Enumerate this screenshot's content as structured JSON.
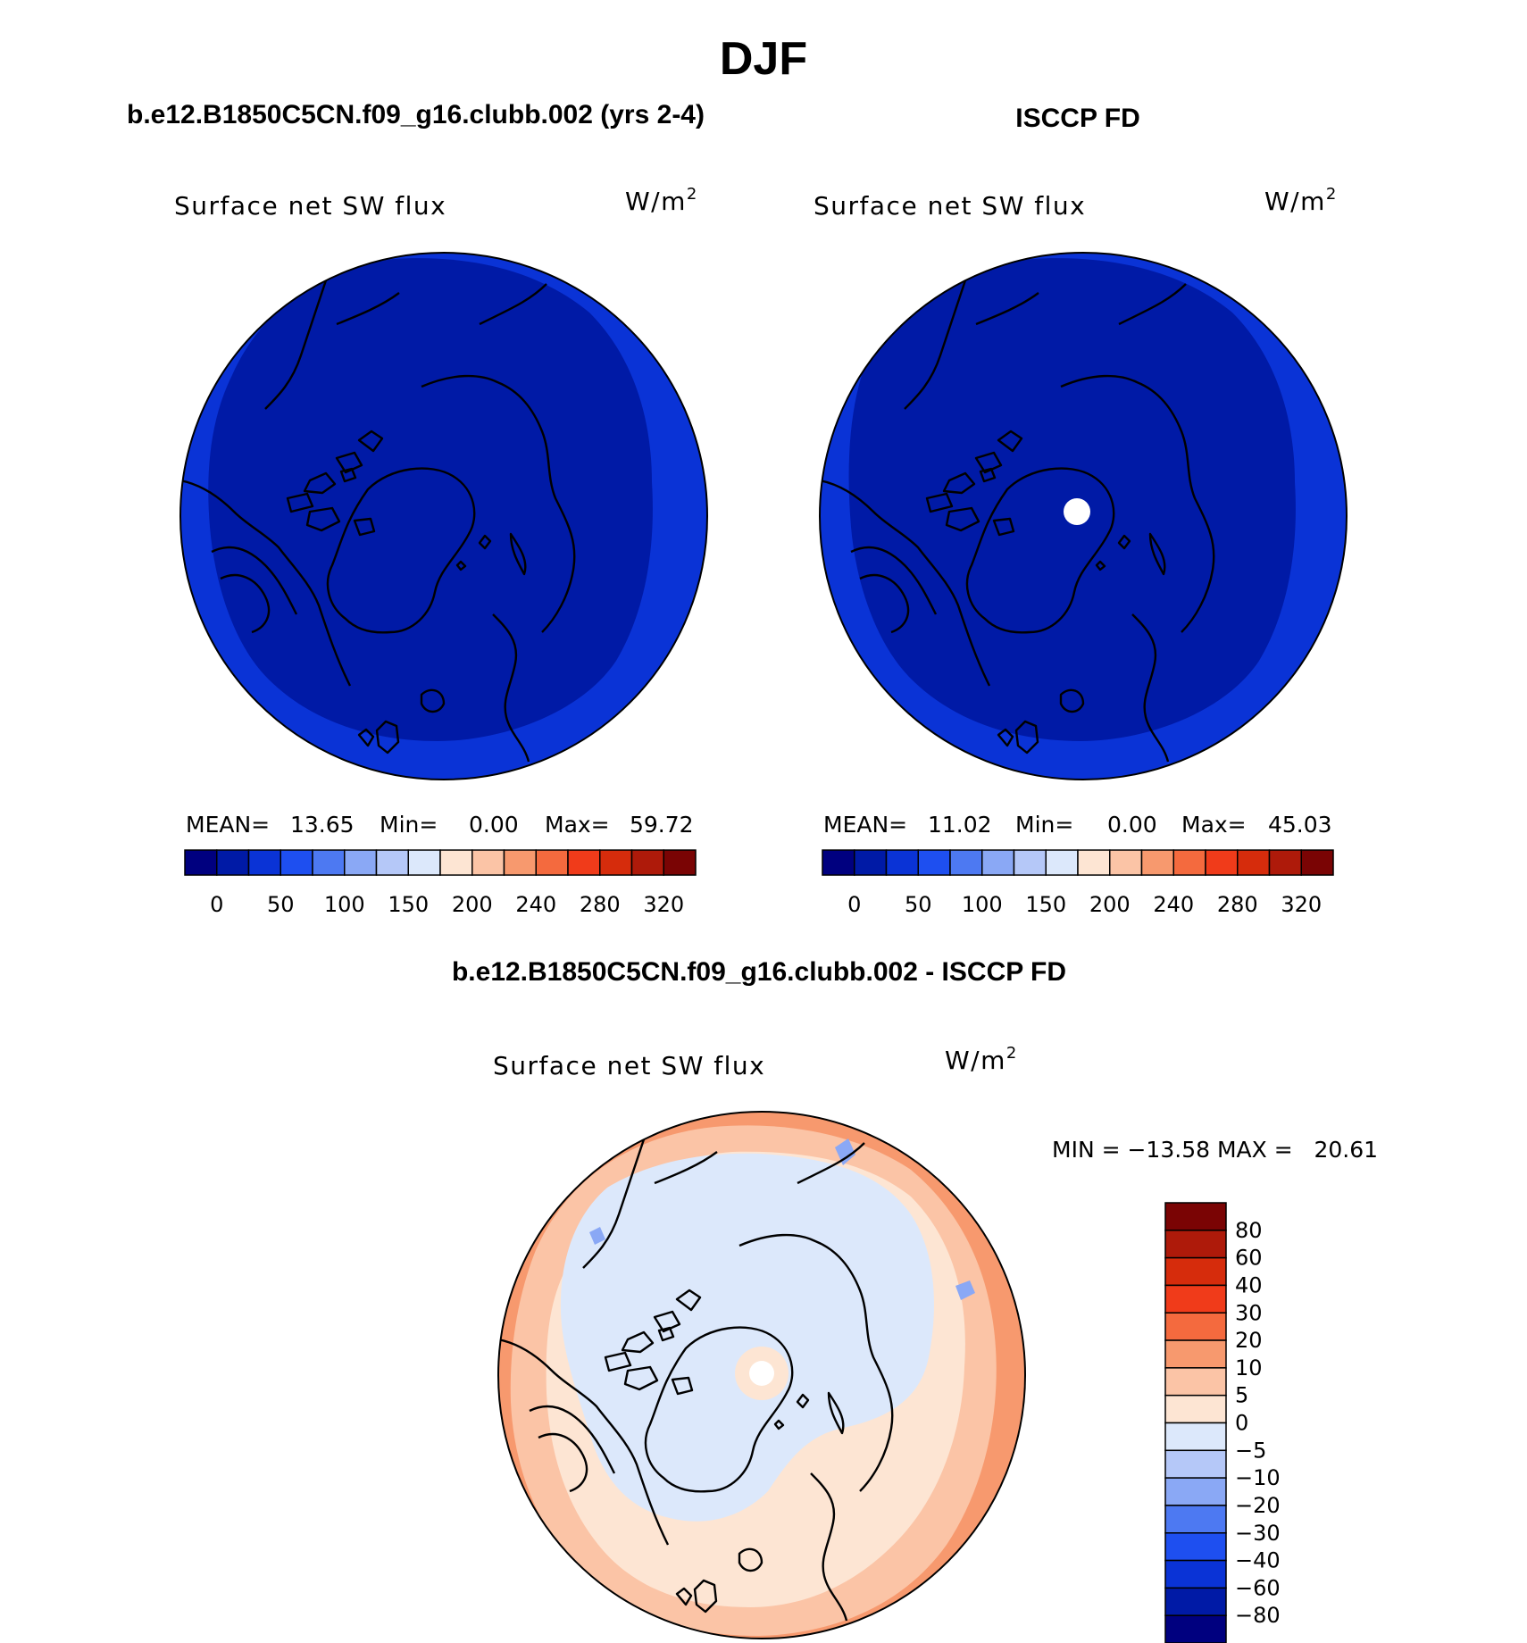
{
  "page": {
    "title": "DJF",
    "left_subtitle": "b.e12.B1850C5CN.f09_g16.clubb.002 (yrs 2-4)",
    "right_subtitle": "ISCCP FD",
    "diff_subtitle": "b.e12.B1850C5CN.f09_g16.clubb.002 - ISCCP FD"
  },
  "panels": {
    "left": {
      "var_label": "Surface net SW flux",
      "units_base": "W/m",
      "units_sup": "2",
      "stats": {
        "mean_label": "MEAN=",
        "mean": "13.65",
        "min_label": "Min=",
        "min": "0.00",
        "max_label": "Max=",
        "max": "59.72"
      }
    },
    "right": {
      "var_label": "Surface net SW flux",
      "units_base": "W/m",
      "units_sup": "2",
      "stats": {
        "mean_label": "MEAN=",
        "mean": "11.02",
        "min_label": "Min=",
        "min": "0.00",
        "max_label": "Max=",
        "max": "45.03"
      }
    },
    "diff": {
      "var_label": "Surface net SW flux",
      "units_base": "W/m",
      "units_sup": "2",
      "stats_text": "MIN = −13.58 MAX =   20.61"
    }
  },
  "colorbars": {
    "abs": {
      "colors": [
        "#00007f",
        "#001aa6",
        "#0a33d6",
        "#1e4ff0",
        "#4d79f2",
        "#8aa8f5",
        "#b5c8f8",
        "#dce8fb",
        "#fde5d3",
        "#fbc4a6",
        "#f7996e",
        "#f46a3e",
        "#f03b1a",
        "#d62c0c",
        "#ae1a0a",
        "#7a0404"
      ],
      "tick_labels": [
        "0",
        "50",
        "100",
        "150",
        "200",
        "240",
        "280",
        "320"
      ]
    },
    "diff": {
      "colors_top_to_bottom": [
        "#7a0404",
        "#ae1a0a",
        "#d62c0c",
        "#f03b1a",
        "#f46a3e",
        "#f7996e",
        "#fbc4a6",
        "#fde5d3",
        "#dce8fb",
        "#b5c8f8",
        "#8aa8f5",
        "#4d79f2",
        "#1e4ff0",
        "#0a33d6",
        "#001aa6",
        "#00007f"
      ],
      "tick_labels_top_to_bottom": [
        "80",
        "60",
        "40",
        "30",
        "20",
        "10",
        "5",
        "0",
        "−5",
        "−10",
        "−20",
        "−30",
        "−40",
        "−60",
        "−80"
      ]
    }
  },
  "map_colors": {
    "abs_outer": "#0a33d6",
    "abs_inner": "#001aa6",
    "diff_outer": "#f7996e",
    "diff_mid": "#fde5d3",
    "diff_inner": "#dce8fb",
    "diff_blue_patch": "#8aa8f5",
    "missing": "#ffffff",
    "coastline": "#000000"
  }
}
